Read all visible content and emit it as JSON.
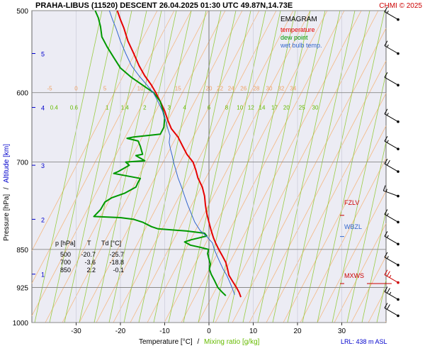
{
  "header": {
    "title": "PRAHA-LIBUS (11520)   DESCENT   26.04.2025 01:30 UTC  49.87N,14.73E",
    "copyright": "CHMI © 2025"
  },
  "legend": {
    "title": "EMAGRAM",
    "items": [
      {
        "label": "temperature",
        "color": "#e60000"
      },
      {
        "label": "dew point",
        "color": "#009900"
      },
      {
        "label": "wet bulb temp.",
        "color": "#3366cc"
      }
    ]
  },
  "axes": {
    "ylabel_pressure": "Pressure [hPa]",
    "ylabel_sep": "/",
    "ylabel_altitude": "Altitude [km]",
    "xlabel_temp": "Temperature [°C]",
    "xlabel_sep": "/",
    "xlabel_mixing": "Mixing ratio [g/kg]"
  },
  "levels": [
    {
      "label": "FZLV",
      "color": "#cc0000",
      "p": 788
    },
    {
      "label": "WBZL",
      "color": "#3366cc",
      "p": 826
    },
    {
      "label": "MXWS",
      "color": "#cc0000",
      "p": 917
    }
  ],
  "lrl_label": "LRL: 438 m ASL",
  "table": {
    "headers": [
      "p [hPa]",
      "T",
      "Td [°C]"
    ],
    "rows": [
      [
        "500",
        "-20.7",
        "-25.7"
      ],
      [
        "700",
        "-3.6",
        "-18.8"
      ],
      [
        "850",
        "2.2",
        "-0.1"
      ]
    ]
  },
  "chart_data": {
    "type": "line",
    "title": "PRAHA-LIBUS (11520)   DESCENT   26.04.2025 01:30 UTC  49.87N,14.73E",
    "xlim": [
      -40,
      40
    ],
    "xticks": [
      -30,
      -20,
      -10,
      0,
      10,
      20,
      30
    ],
    "ylim_hpa": [
      1000,
      500
    ],
    "log_pressure_axis": true,
    "pressure_ticks": [
      500,
      600,
      700,
      850,
      925,
      1000
    ],
    "altitude_ticks_km": [
      {
        "label": "5",
        "p": 550
      },
      {
        "label": "4",
        "p": 620
      },
      {
        "label": "3",
        "p": 705
      },
      {
        "label": "2",
        "p": 795
      },
      {
        "label": "1",
        "p": 898
      }
    ],
    "isotherm_labels": [
      {
        "label": "-5",
        "x": -36,
        "p": 600
      },
      {
        "label": "0",
        "x": -30,
        "p": 600
      },
      {
        "label": "5",
        "x": -23.5,
        "p": 600
      },
      {
        "label": "10",
        "x": -15.5,
        "p": 600
      },
      {
        "label": "15",
        "x": -7,
        "p": 600
      },
      {
        "label": "20",
        "x": 0,
        "p": 600
      },
      {
        "label": "22",
        "x": 2.5,
        "p": 600
      },
      {
        "label": "24",
        "x": 5,
        "p": 600
      },
      {
        "label": "26",
        "x": 7.8,
        "p": 600
      },
      {
        "label": "28",
        "x": 10.7,
        "p": 600
      },
      {
        "label": "30",
        "x": 13.6,
        "p": 600
      },
      {
        "label": "32",
        "x": 16.3,
        "p": 600
      },
      {
        "label": "34",
        "x": 19,
        "p": 600
      }
    ],
    "mixing_ratio_labels": [
      {
        "label": "0.4",
        "x": -35,
        "p": 620
      },
      {
        "label": "0.6",
        "x": -30.5,
        "p": 620
      },
      {
        "label": "1",
        "x": -23,
        "p": 620
      },
      {
        "label": "1.4",
        "x": -19,
        "p": 620
      },
      {
        "label": "2",
        "x": -14.5,
        "p": 620
      },
      {
        "label": "3",
        "x": -9,
        "p": 620
      },
      {
        "label": "4",
        "x": -5.5,
        "p": 620
      },
      {
        "label": "6",
        "x": 0,
        "p": 620
      },
      {
        "label": "8",
        "x": 4,
        "p": 620
      },
      {
        "label": "10",
        "x": 7,
        "p": 620
      },
      {
        "label": "12",
        "x": 9.5,
        "p": 620
      },
      {
        "label": "14",
        "x": 12,
        "p": 620
      },
      {
        "label": "17",
        "x": 14.8,
        "p": 620
      },
      {
        "label": "20",
        "x": 17.5,
        "p": 620
      },
      {
        "label": "25",
        "x": 21,
        "p": 620
      },
      {
        "label": "30",
        "x": 24,
        "p": 620
      }
    ],
    "series": [
      {
        "name": "temperature",
        "color": "#e60000",
        "points": [
          [
            -20.7,
            500
          ],
          [
            -20,
            510
          ],
          [
            -19.2,
            520
          ],
          [
            -18.3,
            535
          ],
          [
            -17,
            550
          ],
          [
            -15.8,
            565
          ],
          [
            -14.5,
            578
          ],
          [
            -13,
            590
          ],
          [
            -12,
            600
          ],
          [
            -11,
            612
          ],
          [
            -10,
            625
          ],
          [
            -9.3,
            638
          ],
          [
            -8.5,
            650
          ],
          [
            -7,
            662
          ],
          [
            -6,
            675
          ],
          [
            -5,
            688
          ],
          [
            -3.6,
            700
          ],
          [
            -3,
            712
          ],
          [
            -2.5,
            725
          ],
          [
            -1.5,
            740
          ],
          [
            -1,
            755
          ],
          [
            -0.8,
            770
          ],
          [
            -0.5,
            785
          ],
          [
            0,
            800
          ],
          [
            0.5,
            815
          ],
          [
            1,
            828
          ],
          [
            1.5,
            838
          ],
          [
            2.2,
            850
          ],
          [
            3,
            862
          ],
          [
            3.8,
            875
          ],
          [
            4.2,
            888
          ],
          [
            4.5,
            900
          ],
          [
            5.3,
            912
          ],
          [
            6.2,
            925
          ],
          [
            6.8,
            935
          ],
          [
            7.2,
            945
          ]
        ]
      },
      {
        "name": "dew point",
        "color": "#009900",
        "points": [
          [
            -25.7,
            500
          ],
          [
            -25,
            508
          ],
          [
            -24.5,
            518
          ],
          [
            -24.2,
            530
          ],
          [
            -23,
            542
          ],
          [
            -21.5,
            555
          ],
          [
            -20,
            568
          ],
          [
            -17.5,
            580
          ],
          [
            -15,
            590
          ],
          [
            -12.5,
            600
          ],
          [
            -11,
            612
          ],
          [
            -10.5,
            622
          ],
          [
            -10,
            635
          ],
          [
            -10.2,
            648
          ],
          [
            -11,
            658
          ],
          [
            -17,
            662
          ],
          [
            -18.5,
            664
          ],
          [
            -16,
            668
          ],
          [
            -15.5,
            676
          ],
          [
            -15,
            688
          ],
          [
            -16.5,
            690
          ],
          [
            -14.5,
            698
          ],
          [
            -18.8,
            700
          ],
          [
            -18,
            705
          ],
          [
            -20.5,
            715
          ],
          [
            -21.5,
            718
          ],
          [
            -18.5,
            722
          ],
          [
            -15.5,
            726
          ],
          [
            -16,
            732
          ],
          [
            -16.5,
            740
          ],
          [
            -19,
            750
          ],
          [
            -22,
            758
          ],
          [
            -23.5,
            765
          ],
          [
            -24.5,
            778
          ],
          [
            -26,
            790
          ],
          [
            -20,
            792
          ],
          [
            -17,
            795
          ],
          [
            -15,
            800
          ],
          [
            -13,
            808
          ],
          [
            -11.5,
            812
          ],
          [
            -5,
            816
          ],
          [
            -1,
            820
          ],
          [
            -0.5,
            825
          ],
          [
            -2,
            828
          ],
          [
            -4,
            832
          ],
          [
            -5.5,
            836
          ],
          [
            -4.2,
            842
          ],
          [
            -2,
            846
          ],
          [
            -0.1,
            850
          ],
          [
            -0.3,
            858
          ],
          [
            0,
            868
          ],
          [
            0.3,
            878
          ],
          [
            0.1,
            888
          ],
          [
            0.5,
            898
          ],
          [
            1.2,
            910
          ],
          [
            2,
            925
          ],
          [
            3,
            935
          ],
          [
            3.8,
            942
          ]
        ]
      },
      {
        "name": "wet bulb temp.",
        "color": "#3366cc",
        "points": [
          [
            -22.5,
            500
          ],
          [
            -21.8,
            510
          ],
          [
            -21,
            520
          ],
          [
            -20,
            535
          ],
          [
            -18.8,
            550
          ],
          [
            -17.5,
            565
          ],
          [
            -15.8,
            578
          ],
          [
            -14,
            590
          ],
          [
            -12.6,
            600
          ],
          [
            -11.5,
            612
          ],
          [
            -10.5,
            625
          ],
          [
            -9.8,
            638
          ],
          [
            -9.3,
            650
          ],
          [
            -8.8,
            660
          ],
          [
            -9,
            670
          ],
          [
            -8.7,
            680
          ],
          [
            -8.3,
            690
          ],
          [
            -8,
            700
          ],
          [
            -7.5,
            712
          ],
          [
            -7,
            725
          ],
          [
            -6.2,
            740
          ],
          [
            -5.5,
            755
          ],
          [
            -4.8,
            770
          ],
          [
            -4,
            785
          ],
          [
            -3.2,
            800
          ],
          [
            -2,
            815
          ],
          [
            -0.5,
            826
          ],
          [
            0.8,
            838
          ],
          [
            1.2,
            850
          ],
          [
            1.8,
            862
          ],
          [
            2.5,
            875
          ],
          [
            3.2,
            888
          ],
          [
            4,
            900
          ],
          [
            4.6,
            912
          ],
          [
            5.2,
            925
          ],
          [
            5.8,
            940
          ]
        ]
      }
    ],
    "wind_barbs": [
      {
        "p": 510,
        "dir_deg": 300,
        "speed_kt": 15,
        "color": "#000000"
      },
      {
        "p": 550,
        "dir_deg": 300,
        "speed_kt": 15,
        "color": "#000000"
      },
      {
        "p": 590,
        "dir_deg": 300,
        "speed_kt": 10,
        "color": "#000000"
      },
      {
        "p": 640,
        "dir_deg": 300,
        "speed_kt": 15,
        "color": "#000000"
      },
      {
        "p": 680,
        "dir_deg": 300,
        "speed_kt": 15,
        "color": "#000000"
      },
      {
        "p": 715,
        "dir_deg": 300,
        "speed_kt": 20,
        "color": "#000000"
      },
      {
        "p": 755,
        "dir_deg": 290,
        "speed_kt": 15,
        "color": "#000000"
      },
      {
        "p": 800,
        "dir_deg": 300,
        "speed_kt": 15,
        "color": "#000000"
      },
      {
        "p": 840,
        "dir_deg": 300,
        "speed_kt": 15,
        "color": "#000000"
      },
      {
        "p": 880,
        "dir_deg": 300,
        "speed_kt": 15,
        "color": "#000000"
      },
      {
        "p": 915,
        "dir_deg": 300,
        "speed_kt": 25,
        "color": "#cc0000"
      },
      {
        "p": 950,
        "dir_deg": 300,
        "speed_kt": 25,
        "color": "#000000"
      },
      {
        "p": 985,
        "dir_deg": 300,
        "speed_kt": 20,
        "color": "#000000"
      }
    ]
  }
}
